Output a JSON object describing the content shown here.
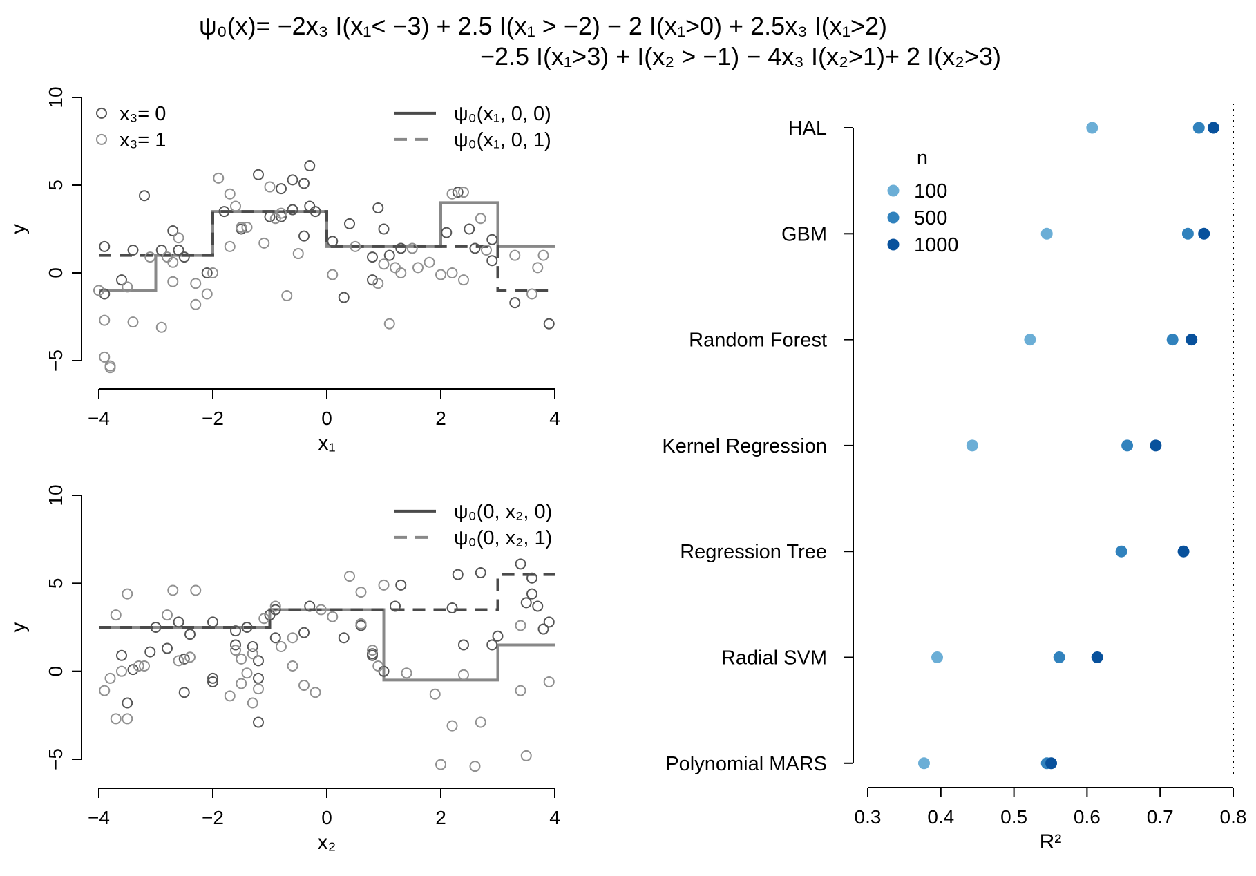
{
  "figure": {
    "title_line1": "ψ₀(x)= −2x₃ I(x₁< −3) + 2.5 I(x₁ > −2) − 2 I(x₁>0) + 2.5x₃ I(x₁>2)",
    "title_line2": "−2.5 I(x₁>3) + I(x₂ > −1) − 4x₃ I(x₂>1)+ 2 I(x₂>3)"
  },
  "colors": {
    "black_points": "#555555",
    "gray_points": "#909090",
    "line_x3_0": "#888888",
    "line_x3_1": "#4a4a4a",
    "n100": "#6baed6",
    "n500": "#3182bd",
    "n1000": "#08519c"
  },
  "chart_data": [
    {
      "type": "scatter",
      "title": "",
      "xlabel": "x₁",
      "ylabel": "y",
      "xlim": [
        -4,
        4
      ],
      "ylim": [
        -5,
        10
      ],
      "xticks": [
        "−4",
        "−2",
        "0",
        "2",
        "4"
      ],
      "yticks": [
        "−5",
        "0",
        "5",
        "10"
      ],
      "legend_points": [
        {
          "label": "x₃= 0",
          "group": 0
        },
        {
          "label": "x₃= 1",
          "group": 1
        }
      ],
      "legend_lines": [
        {
          "label": "ψ₀(x₁, 0, 0)",
          "style": "solid"
        },
        {
          "label": "ψ₀(x₁, 0, 1)",
          "style": "dashed"
        }
      ],
      "step_x3_0": {
        "x": [
          -4,
          -3,
          -3,
          -2,
          -2,
          0,
          0,
          2,
          2,
          3,
          3,
          4
        ],
        "y": [
          -1,
          -1,
          1,
          1,
          3.5,
          3.5,
          1.5,
          1.5,
          4,
          4,
          1.5,
          1.5
        ]
      },
      "step_x3_1": {
        "x": [
          -4,
          -3,
          -3,
          -2,
          -2,
          0,
          0,
          2,
          2,
          3,
          3,
          4
        ],
        "y": [
          1,
          1,
          1,
          1,
          3.5,
          3.5,
          1.5,
          1.5,
          1.5,
          1.5,
          -1,
          -1
        ]
      },
      "points_x3_0": [
        [
          -3.9,
          1.5
        ],
        [
          -3.6,
          -0.4
        ],
        [
          -3.9,
          -1.2
        ],
        [
          -3.4,
          1.3
        ],
        [
          -2.9,
          1.3
        ],
        [
          -2.7,
          2.4
        ],
        [
          -2.6,
          1.3
        ],
        [
          -2.5,
          0.9
        ],
        [
          -3.2,
          4.4
        ],
        [
          -2.1,
          0.0
        ],
        [
          -1.2,
          5.6
        ],
        [
          -0.8,
          4.8
        ],
        [
          -0.6,
          5.3
        ],
        [
          -0.4,
          5.1
        ],
        [
          -0.3,
          6.1
        ],
        [
          -0.8,
          3.2
        ],
        [
          -0.6,
          3.6
        ],
        [
          -0.4,
          2.1
        ],
        [
          -0.3,
          3.8
        ],
        [
          -0.2,
          3.5
        ],
        [
          0.1,
          1.8
        ],
        [
          0.4,
          2.8
        ],
        [
          0.8,
          0.9
        ],
        [
          0.9,
          3.7
        ],
        [
          1.0,
          2.5
        ],
        [
          0.8,
          -0.4
        ],
        [
          1.1,
          1.0
        ],
        [
          1.3,
          1.4
        ],
        [
          0.3,
          -1.4
        ],
        [
          2.1,
          2.3
        ],
        [
          2.3,
          4.6
        ],
        [
          2.5,
          2.5
        ],
        [
          2.6,
          1.4
        ],
        [
          2.9,
          1.9
        ],
        [
          2.9,
          0.7
        ],
        [
          3.3,
          -1.7
        ],
        [
          3.9,
          -2.9
        ],
        [
          -1.5,
          2.5
        ],
        [
          -1.8,
          3.5
        ],
        [
          -1.0,
          3.2
        ]
      ],
      "points_x3_1": [
        [
          -4.0,
          -1.0
        ],
        [
          -3.9,
          -2.7
        ],
        [
          -3.9,
          -4.8
        ],
        [
          -3.8,
          -5.4
        ],
        [
          -3.8,
          -5.3
        ],
        [
          -3.5,
          -0.8
        ],
        [
          -3.4,
          -2.8
        ],
        [
          -3.1,
          0.9
        ],
        [
          -2.9,
          -3.1
        ],
        [
          -2.8,
          0.9
        ],
        [
          -2.7,
          -0.5
        ],
        [
          -2.7,
          0.6
        ],
        [
          -2.3,
          -1.8
        ],
        [
          -2.3,
          -0.6
        ],
        [
          -2.1,
          -1.2
        ],
        [
          -2.0,
          0.0
        ],
        [
          -1.9,
          5.4
        ],
        [
          -1.7,
          4.5
        ],
        [
          -1.6,
          3.8
        ],
        [
          -1.7,
          1.5
        ],
        [
          -1.5,
          2.6
        ],
        [
          -1.4,
          2.6
        ],
        [
          -1.1,
          1.7
        ],
        [
          -1.0,
          4.9
        ],
        [
          -0.9,
          3.1
        ],
        [
          -0.8,
          3.4
        ],
        [
          -0.7,
          -1.3
        ],
        [
          -0.5,
          1.1
        ],
        [
          0.1,
          -0.1
        ],
        [
          0.5,
          1.5
        ],
        [
          0.9,
          -0.6
        ],
        [
          1.0,
          0.5
        ],
        [
          1.1,
          -2.9
        ],
        [
          1.2,
          0.3
        ],
        [
          1.3,
          0.0
        ],
        [
          1.6,
          0.3
        ],
        [
          1.8,
          0.6
        ],
        [
          2.0,
          -0.1
        ],
        [
          2.2,
          0.0
        ],
        [
          2.4,
          -0.4
        ],
        [
          2.2,
          4.5
        ],
        [
          2.4,
          4.6
        ],
        [
          2.7,
          3.1
        ],
        [
          2.8,
          1.3
        ],
        [
          3.3,
          1.0
        ],
        [
          3.6,
          -1.2
        ],
        [
          3.7,
          0.3
        ],
        [
          3.8,
          1.0
        ],
        [
          -2.6,
          2.0
        ],
        [
          1.5,
          1.4
        ]
      ]
    },
    {
      "type": "scatter",
      "title": "",
      "xlabel": "x₂",
      "ylabel": "y",
      "xlim": [
        -4,
        4
      ],
      "ylim": [
        -5,
        10
      ],
      "xticks": [
        "−4",
        "−2",
        "0",
        "2",
        "4"
      ],
      "yticks": [
        "−5",
        "0",
        "5",
        "10"
      ],
      "legend_lines": [
        {
          "label": "ψ₀(0, x₂, 0)",
          "style": "solid"
        },
        {
          "label": "ψ₀(0, x₂, 1)",
          "style": "dashed"
        }
      ],
      "step_x3_0": {
        "x": [
          -4,
          -1,
          -1,
          1,
          1,
          3,
          3,
          4
        ],
        "y": [
          2.5,
          2.5,
          3.5,
          3.5,
          -0.5,
          -0.5,
          1.5,
          1.5
        ]
      },
      "step_x3_1": {
        "x": [
          -4,
          -1,
          -1,
          1,
          1,
          3,
          3,
          4
        ],
        "y": [
          2.5,
          2.5,
          3.5,
          3.5,
          3.5,
          3.5,
          5.5,
          5.5
        ]
      },
      "points_x3_0": [
        [
          -3.6,
          0.9
        ],
        [
          -3.5,
          -1.8
        ],
        [
          -3.4,
          0.1
        ],
        [
          -3.1,
          1.1
        ],
        [
          -3.0,
          2.5
        ],
        [
          -2.8,
          1.3
        ],
        [
          -2.6,
          2.8
        ],
        [
          -2.5,
          0.7
        ],
        [
          -2.5,
          -1.2
        ],
        [
          -2.4,
          2.1
        ],
        [
          -2.0,
          -0.6
        ],
        [
          -2.0,
          -0.4
        ],
        [
          -2.0,
          2.8
        ],
        [
          -1.6,
          2.3
        ],
        [
          -1.6,
          1.5
        ],
        [
          -1.3,
          1.4
        ],
        [
          -1.2,
          0.6
        ],
        [
          -1.2,
          -0.4
        ],
        [
          -1.2,
          -2.9
        ],
        [
          -1.0,
          3.2
        ],
        [
          -0.9,
          3.5
        ],
        [
          -0.9,
          1.9
        ],
        [
          -0.3,
          3.7
        ],
        [
          -0.4,
          2.2
        ],
        [
          0.3,
          1.9
        ],
        [
          0.6,
          2.6
        ],
        [
          0.8,
          1.0
        ],
        [
          0.8,
          0.9
        ],
        [
          1.0,
          0.0
        ],
        [
          1.2,
          3.7
        ],
        [
          1.3,
          4.9
        ],
        [
          2.2,
          3.6
        ],
        [
          2.4,
          1.5
        ],
        [
          2.9,
          1.5
        ],
        [
          3.0,
          2.0
        ],
        [
          3.5,
          3.9
        ],
        [
          3.6,
          5.3
        ],
        [
          3.9,
          2.8
        ],
        [
          3.8,
          2.4
        ],
        [
          3.7,
          3.7
        ],
        [
          2.3,
          5.5
        ],
        [
          2.7,
          5.6
        ],
        [
          3.4,
          6.1
        ],
        [
          3.6,
          4.4
        ],
        [
          -1.4,
          2.5
        ]
      ],
      "points_x3_1": [
        [
          -3.9,
          -1.1
        ],
        [
          -3.7,
          -2.7
        ],
        [
          -3.7,
          3.2
        ],
        [
          -3.6,
          0.0
        ],
        [
          -3.5,
          4.4
        ],
        [
          -3.5,
          -2.7
        ],
        [
          -3.3,
          0.3
        ],
        [
          -3.2,
          0.3
        ],
        [
          -2.8,
          3.2
        ],
        [
          -2.7,
          4.6
        ],
        [
          -2.6,
          0.6
        ],
        [
          -2.4,
          0.8
        ],
        [
          -2.3,
          4.6
        ],
        [
          -1.7,
          -1.4
        ],
        [
          -1.6,
          1.2
        ],
        [
          -1.5,
          0.7
        ],
        [
          -1.5,
          -0.7
        ],
        [
          -1.4,
          -0.1
        ],
        [
          -1.3,
          1.0
        ],
        [
          -1.3,
          -1.8
        ],
        [
          -1.2,
          -1.0
        ],
        [
          -1.1,
          3.0
        ],
        [
          -0.9,
          3.7
        ],
        [
          -0.8,
          1.4
        ],
        [
          -0.6,
          1.9
        ],
        [
          -0.6,
          0.3
        ],
        [
          -0.4,
          -0.8
        ],
        [
          -0.2,
          -1.2
        ],
        [
          -0.1,
          3.5
        ],
        [
          0.1,
          3.1
        ],
        [
          0.4,
          5.4
        ],
        [
          0.6,
          4.5
        ],
        [
          0.6,
          2.7
        ],
        [
          0.8,
          1.2
        ],
        [
          0.9,
          0.3
        ],
        [
          1.0,
          4.9
        ],
        [
          1.4,
          -0.1
        ],
        [
          1.9,
          -1.3
        ],
        [
          2.0,
          -5.3
        ],
        [
          2.2,
          -3.1
        ],
        [
          2.4,
          -0.2
        ],
        [
          2.6,
          -5.4
        ],
        [
          2.7,
          -2.9
        ],
        [
          3.4,
          -1.1
        ],
        [
          3.4,
          2.6
        ],
        [
          3.5,
          -4.8
        ],
        [
          3.9,
          -0.6
        ],
        [
          -3.8,
          -0.4
        ]
      ]
    },
    {
      "type": "scatter",
      "title": "",
      "xlabel": "R²",
      "ylabel": "",
      "xlim": [
        0.3,
        0.8
      ],
      "xticks": [
        "0.3",
        "0.4",
        "0.5",
        "0.6",
        "0.7",
        "0.8"
      ],
      "reference_line_x": 0.8,
      "legend_title": "n",
      "legend_placement": "upper-left",
      "categories": [
        "HAL",
        "GBM",
        "Random Forest",
        "Kernel Regression",
        "Regression Tree",
        "Radial SVM",
        "Polynomial MARS"
      ],
      "series": [
        {
          "name": "100",
          "values": [
            0.607,
            0.545,
            0.522,
            0.443,
            null,
            0.395,
            0.377
          ]
        },
        {
          "name": "500",
          "values": [
            0.753,
            0.738,
            0.717,
            0.655,
            0.647,
            0.562,
            0.545
          ]
        },
        {
          "name": "1000",
          "values": [
            0.773,
            0.76,
            0.743,
            0.694,
            0.732,
            0.614,
            0.551
          ]
        }
      ]
    }
  ]
}
